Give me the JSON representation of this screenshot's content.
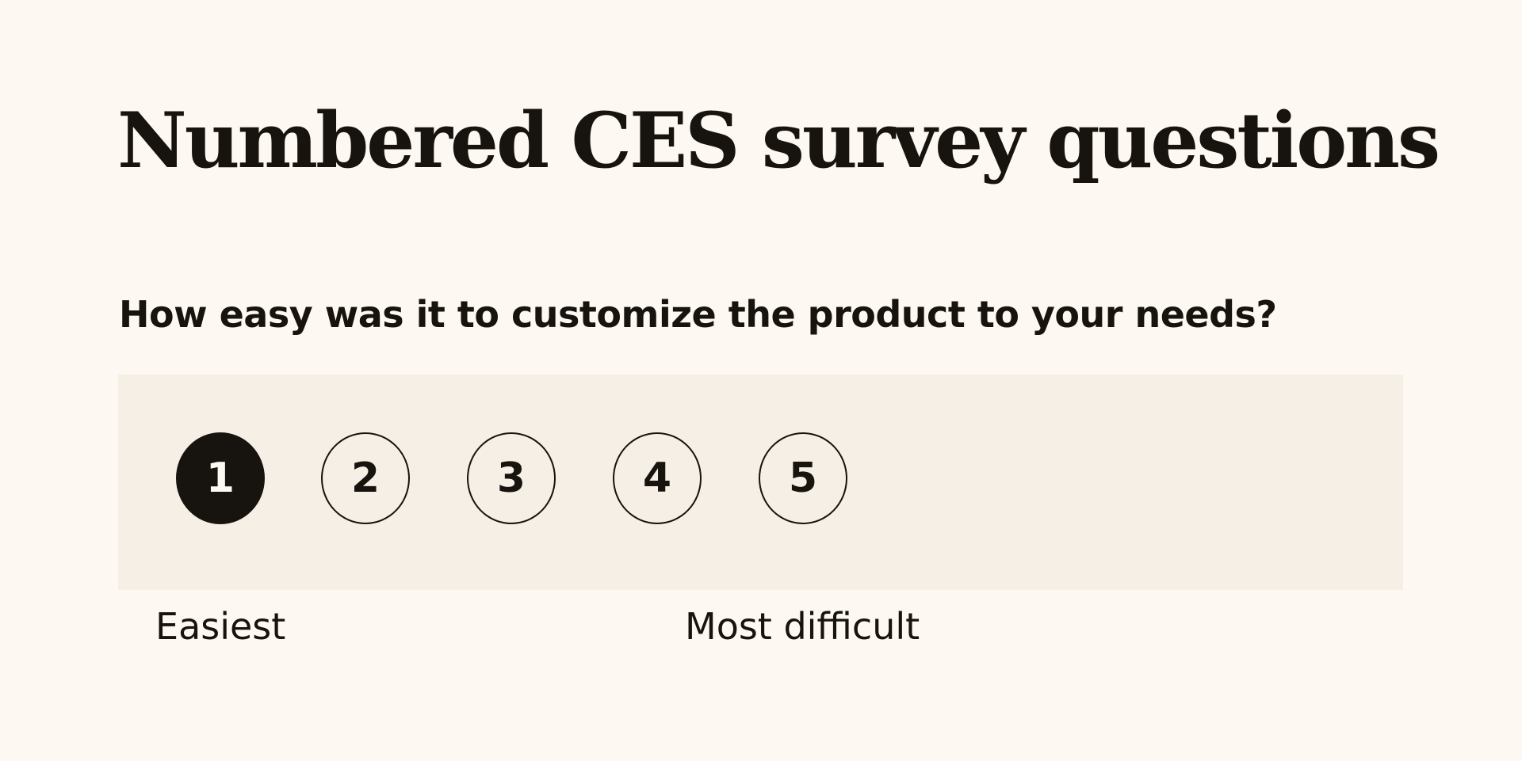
{
  "heading": {
    "title": "Numbered CES survey questions"
  },
  "survey": {
    "question": "How easy was it to customize the product to your needs?",
    "options": [
      "1",
      "2",
      "3",
      "4",
      "5"
    ],
    "selected_value": "1",
    "anchor_low": "Easiest",
    "anchor_high": "Most difficult"
  },
  "colors": {
    "background": "#fdf9f2",
    "panel": "#f6efe5",
    "ink": "#17140f"
  }
}
